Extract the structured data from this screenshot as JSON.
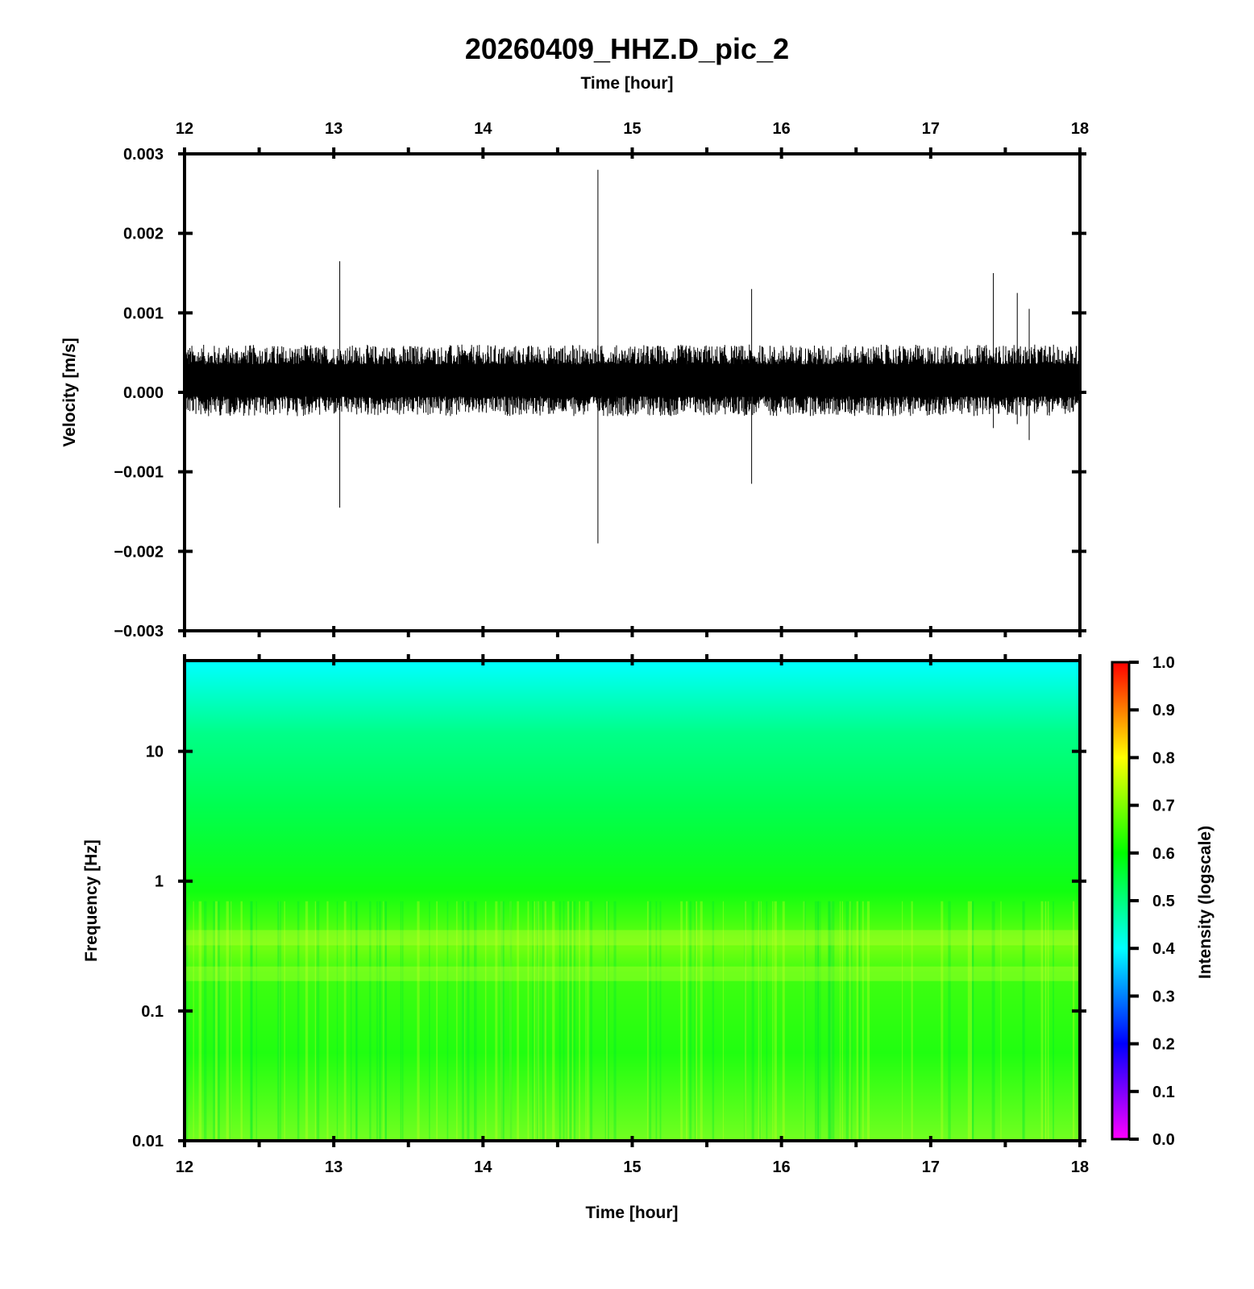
{
  "chart_data": [
    {
      "type": "line",
      "title": "20260409_HHZ.D_pic_2",
      "xlabel": "Time [hour]",
      "ylabel": "Velocity [m/s]",
      "xlim": [
        12,
        18
      ],
      "ylim": [
        -0.003,
        0.003
      ],
      "x_axis_position": "top",
      "x_ticks": [
        "12",
        "13",
        "14",
        "15",
        "16",
        "17",
        "18"
      ],
      "y_ticks": [
        "0.003",
        "0.002",
        "0.001",
        "0.000",
        "−0.001",
        "−0.002",
        "−0.003"
      ],
      "grid": false,
      "series": [
        {
          "noise_band_mean": 0.00015,
          "noise_band_upper": 0.0006,
          "noise_band_lower": -0.0003,
          "spikes": [
            {
              "x": 13.04,
              "y_max": 0.00165,
              "y_min": -0.00145
            },
            {
              "x": 14.77,
              "y_max": 0.0028,
              "y_min": -0.0019
            },
            {
              "x": 15.8,
              "y_max": 0.0013,
              "y_min": -0.00115
            },
            {
              "x": 17.42,
              "y_max": 0.0015,
              "y_min": -0.00045
            },
            {
              "x": 17.58,
              "y_max": 0.00125,
              "y_min": -0.0004
            },
            {
              "x": 17.66,
              "y_max": 0.00105,
              "y_min": -0.0006
            }
          ]
        }
      ]
    },
    {
      "type": "heatmap",
      "xlabel": "Time [hour]",
      "ylabel": "Frequency [Hz]",
      "xlim": [
        12,
        18
      ],
      "ylim": [
        0.01,
        50
      ],
      "y_scale": "log",
      "x_ticks": [
        "12",
        "13",
        "14",
        "15",
        "16",
        "17",
        "18"
      ],
      "y_ticks": [
        "10",
        "1",
        "0.1",
        "0.01"
      ],
      "colorbar": {
        "label": "Intensity (logscale)",
        "range": [
          0.0,
          1.0
        ],
        "ticks": [
          "1.0",
          "0.9",
          "0.8",
          "0.7",
          "0.6",
          "0.5",
          "0.4",
          "0.3",
          "0.2",
          "0.1",
          "0.0"
        ],
        "colormap": [
          "#ff00ff",
          "#0000ff",
          "#00ffff",
          "#00ff00",
          "#ffff00",
          "#ff0000"
        ]
      },
      "intensity_profile": [
        {
          "freq": 50,
          "intensity": 0.42
        },
        {
          "freq": 20,
          "intensity": 0.5
        },
        {
          "freq": 5,
          "intensity": 0.58
        },
        {
          "freq": 1,
          "intensity": 0.62
        },
        {
          "freq": 0.4,
          "intensity": 0.7
        },
        {
          "freq": 0.2,
          "intensity": 0.68
        },
        {
          "freq": 0.05,
          "intensity": 0.63
        },
        {
          "freq": 0.01,
          "intensity": 0.7
        }
      ]
    }
  ]
}
